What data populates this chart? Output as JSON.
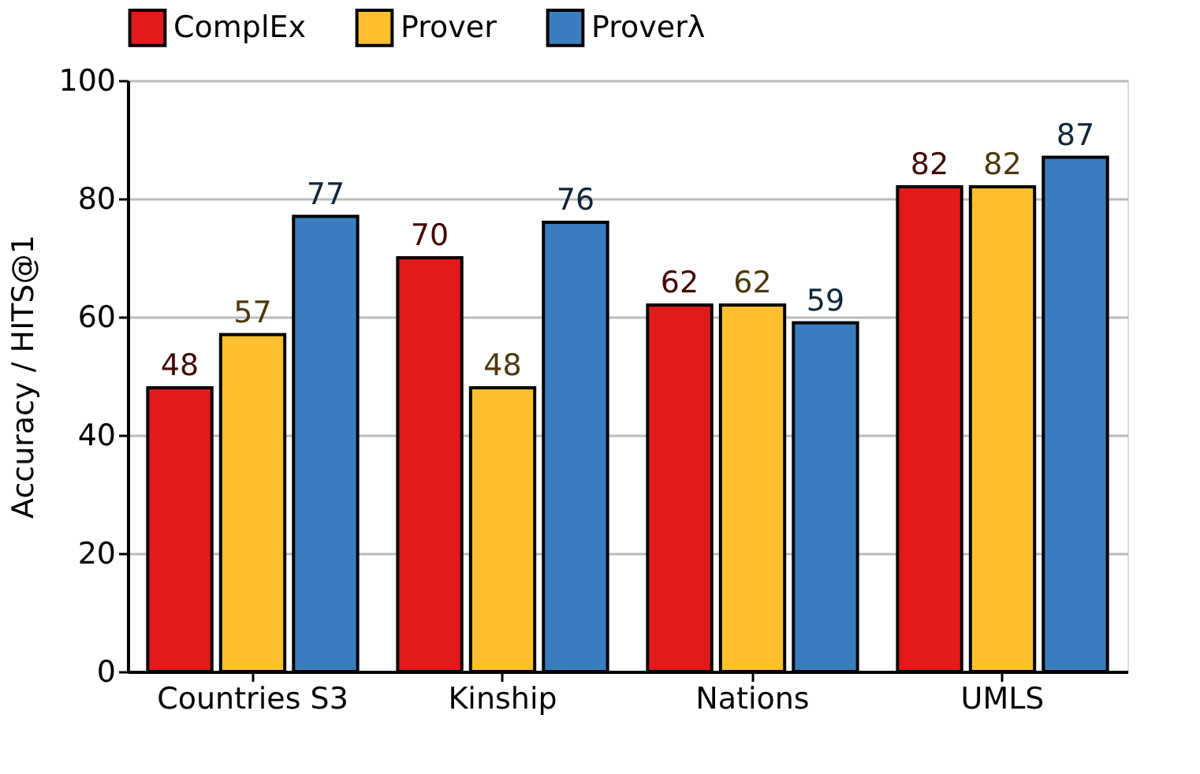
{
  "chart_data": {
    "type": "bar",
    "ylabel": "Accuracy / HITS@1",
    "categories": [
      "Countries S3",
      "Kinship",
      "Nations",
      "UMLS"
    ],
    "series": [
      {
        "name": "ComplEx",
        "color": "#e31a1c",
        "values": [
          48,
          70,
          62,
          82
        ]
      },
      {
        "name": "Prover",
        "color": "#fdbf2d",
        "values": [
          57,
          48,
          62,
          82
        ]
      },
      {
        "name": "Proverλ",
        "color": "#3a7dbf",
        "values": [
          77,
          76,
          59,
          87
        ]
      }
    ],
    "ylim": [
      0,
      100
    ],
    "yticks": [
      0,
      20,
      40,
      60,
      80,
      100
    ],
    "grid": "y",
    "legend": "top",
    "data_labels": true
  }
}
